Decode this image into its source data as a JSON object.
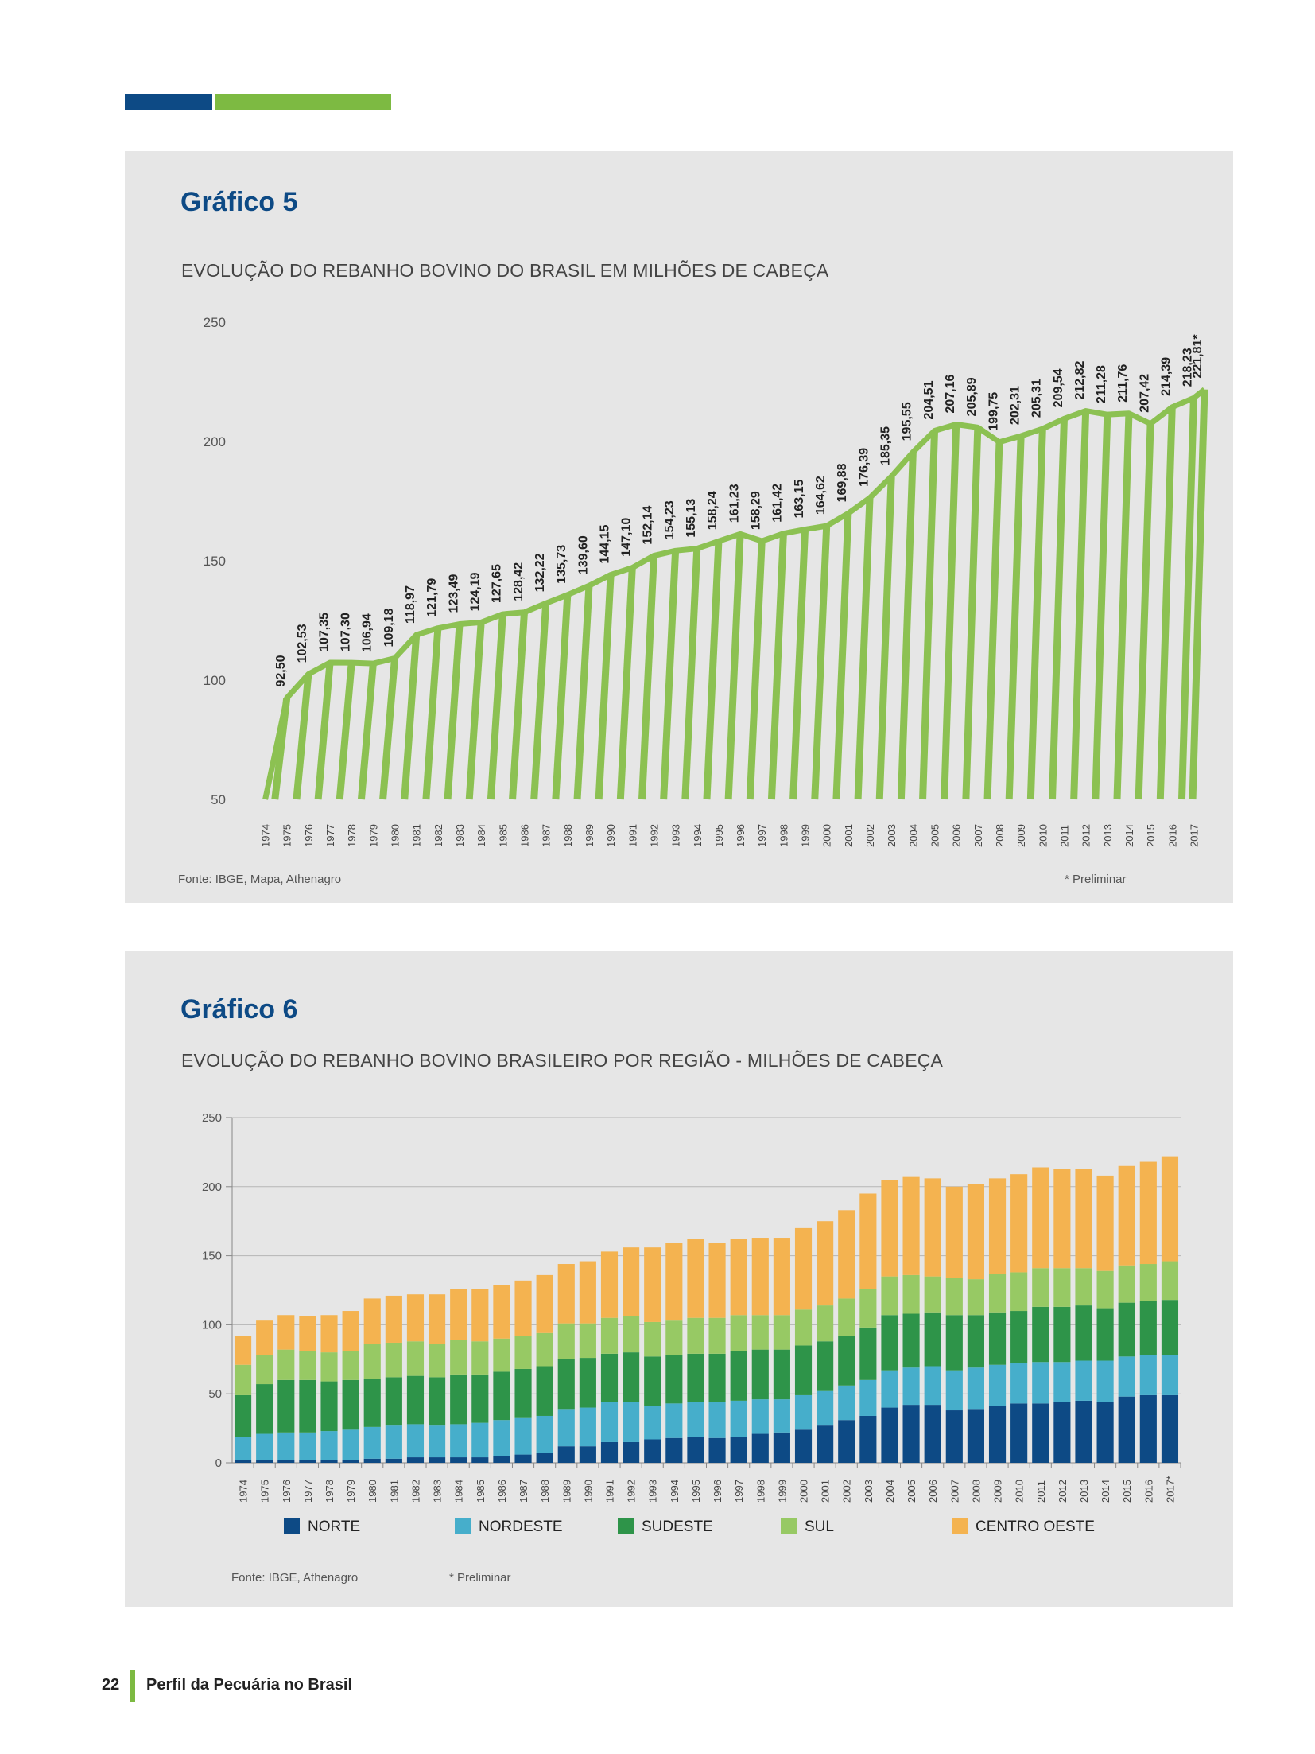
{
  "footer": {
    "page_number": "22",
    "publication_title": "Perfil da Pecuária no Brasil"
  },
  "colors": {
    "brand_blue": "#0d4a85",
    "brand_green": "#7dba42",
    "panel_bg": "#e6e6e6"
  },
  "chart5": {
    "title": "Gráfico 5",
    "subtitle": "EVOLUÇÃO DO REBANHO BOVINO DO BRASIL EM MILHÕES DE CABEÇA",
    "source": "Fonte: IBGE, Mapa, Athenagro",
    "note": "* Preliminar"
  },
  "chart6": {
    "title": "Gráfico 6",
    "subtitle": "EVOLUÇÃO DO REBANHO BOVINO BRASILEIRO POR REGIÃO -  MILHÕES DE CABEÇA",
    "source": "Fonte: IBGE, Athenagro",
    "note": "* Preliminar"
  },
  "chart_data": [
    {
      "type": "line",
      "title": "EVOLUÇÃO DO REBANHO BOVINO DO BRASIL EM MILHÕES DE CABEÇA",
      "ylim": [
        50,
        250
      ],
      "yticks": [
        50,
        100,
        150,
        200,
        250
      ],
      "color": "#8cc152",
      "x": [
        "1974",
        "1975",
        "1976",
        "1977",
        "1978",
        "1979",
        "1980",
        "1981",
        "1982",
        "1983",
        "1984",
        "1985",
        "1986",
        "1987",
        "1988",
        "1989",
        "1990",
        "1991",
        "1992",
        "1993",
        "1994",
        "1995",
        "1996",
        "1997",
        "1998",
        "1999",
        "2000",
        "2001",
        "2002",
        "2003",
        "2004",
        "2005",
        "2006",
        "2007",
        "2008",
        "2009",
        "2010",
        "2011",
        "2012",
        "2013",
        "2014",
        "2015",
        "2016",
        "2017"
      ],
      "values": [
        null,
        92.5,
        102.53,
        107.35,
        107.3,
        106.94,
        109.18,
        118.97,
        121.79,
        123.49,
        124.19,
        127.65,
        128.42,
        132.22,
        135.73,
        139.6,
        144.15,
        147.1,
        152.14,
        154.23,
        155.13,
        158.24,
        161.23,
        158.29,
        161.42,
        163.15,
        164.62,
        169.88,
        176.39,
        185.35,
        195.55,
        204.51,
        207.16,
        205.89,
        199.75,
        202.31,
        205.31,
        209.54,
        212.82,
        211.28,
        211.76,
        207.42,
        214.39,
        218.23
      ],
      "data_labels": [
        "",
        "92,50",
        "102,53",
        "107,35",
        "107,30",
        "106,94",
        "109,18",
        "118,97",
        "121,79",
        "123,49",
        "124,19",
        "127,65",
        "128,42",
        "132,22",
        "135,73",
        "139,60",
        "144,15",
        "147,10",
        "152,14",
        "154,23",
        "155,13",
        "158,24",
        "161,23",
        "158,29",
        "161,42",
        "163,15",
        "164,62",
        "169,88",
        "176,39",
        "185,35",
        "195,55",
        "204,51",
        "207,16",
        "205,89",
        "199,75",
        "202,31",
        "205,31",
        "209,54",
        "212,82",
        "211,28",
        "211,76",
        "207,42",
        "214,39",
        "218,23"
      ],
      "final_value": 221.81,
      "final_label": "221,81*"
    },
    {
      "type": "bar",
      "stacked": true,
      "title": "EVOLUÇÃO DO REBANHO BOVINO BRASILEIRO POR REGIÃO -  MILHÕES DE CABEÇA",
      "ylim": [
        0,
        250
      ],
      "yticks": [
        0,
        50,
        100,
        150,
        200,
        250
      ],
      "categories": [
        "1974",
        "1975",
        "1976",
        "1977",
        "1978",
        "1979",
        "1980",
        "1981",
        "1982",
        "1983",
        "1984",
        "1985",
        "1986",
        "1987",
        "1988",
        "1989",
        "1990",
        "1991",
        "1992",
        "1993",
        "1994",
        "1995",
        "1996",
        "1997",
        "1998",
        "1999",
        "2000",
        "2001",
        "2002",
        "2003",
        "2004",
        "2005",
        "2006",
        "2007",
        "2008",
        "2009",
        "2010",
        "2011",
        "2012",
        "2013",
        "2014",
        "2015",
        "2016",
        "2017*"
      ],
      "series": [
        {
          "name": "NORTE",
          "color": "#0d4a85",
          "values": [
            2,
            2,
            2,
            2,
            2,
            2,
            3,
            3,
            4,
            4,
            4,
            4,
            5,
            6,
            7,
            12,
            12,
            15,
            15,
            17,
            18,
            19,
            18,
            19,
            21,
            22,
            24,
            27,
            31,
            34,
            40,
            42,
            42,
            38,
            39,
            41,
            43,
            43,
            44,
            45,
            44,
            48,
            49,
            49
          ]
        },
        {
          "name": "NORDESTE",
          "color": "#46aecb",
          "values": [
            17,
            19,
            20,
            20,
            21,
            22,
            23,
            24,
            24,
            23,
            24,
            25,
            26,
            27,
            27,
            27,
            28,
            29,
            29,
            24,
            25,
            25,
            26,
            26,
            25,
            24,
            25,
            25,
            25,
            26,
            27,
            27,
            28,
            29,
            30,
            30,
            29,
            30,
            29,
            29,
            30,
            29,
            29,
            29
          ]
        },
        {
          "name": "SUDESTE",
          "color": "#2e9449",
          "values": [
            30,
            36,
            38,
            38,
            36,
            36,
            35,
            35,
            35,
            35,
            36,
            35,
            35,
            35,
            36,
            36,
            36,
            35,
            36,
            36,
            35,
            35,
            35,
            36,
            36,
            36,
            36,
            36,
            36,
            38,
            40,
            39,
            39,
            40,
            38,
            38,
            38,
            40,
            40,
            40,
            38,
            39,
            39,
            40
          ]
        },
        {
          "name": "SUL",
          "color": "#97c964",
          "values": [
            22,
            21,
            22,
            21,
            21,
            21,
            25,
            25,
            25,
            24,
            25,
            24,
            24,
            24,
            24,
            26,
            25,
            26,
            26,
            25,
            25,
            26,
            26,
            26,
            25,
            25,
            26,
            26,
            27,
            28,
            28,
            28,
            26,
            27,
            26,
            28,
            28,
            28,
            28,
            27,
            27,
            27,
            27,
            28
          ]
        },
        {
          "name": "CENTRO OESTE",
          "color": "#f4b350",
          "values": [
            21,
            25,
            25,
            25,
            27,
            29,
            33,
            34,
            34,
            36,
            37,
            38,
            39,
            40,
            42,
            43,
            45,
            48,
            50,
            54,
            56,
            57,
            54,
            55,
            56,
            56,
            59,
            61,
            64,
            69,
            70,
            71,
            71,
            66,
            69,
            69,
            71,
            73,
            72,
            72,
            69,
            72,
            74,
            76
          ]
        }
      ]
    }
  ]
}
